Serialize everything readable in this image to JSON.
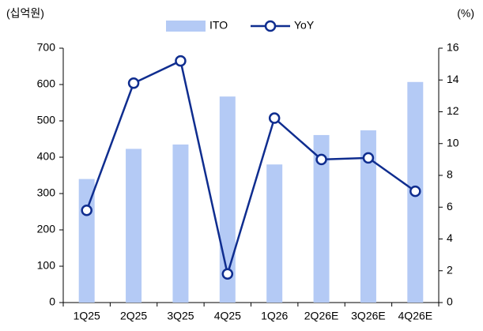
{
  "chart_data": {
    "type": "bar_line",
    "y_label": "(십억원)",
    "y2_label": "(%)",
    "categories": [
      "1Q25",
      "2Q25",
      "3Q25",
      "4Q25",
      "1Q26",
      "2Q26E",
      "3Q26E",
      "4Q26E"
    ],
    "series": [
      {
        "name": "ITO",
        "type": "bar",
        "color": "#b4caf5",
        "values": [
          340,
          423,
          435,
          567,
          380,
          461,
          474,
          607
        ]
      },
      {
        "name": "YoY",
        "type": "line",
        "axis": "y2",
        "color": "#0f2d8f",
        "values": [
          5.8,
          13.8,
          15.2,
          1.8,
          11.6,
          9.0,
          9.1,
          7.0
        ]
      }
    ],
    "ylim": [
      0,
      700
    ],
    "yticks": [
      0,
      100,
      200,
      300,
      400,
      500,
      600,
      700
    ],
    "y2lim": [
      0,
      16
    ],
    "y2ticks": [
      0,
      2,
      4,
      6,
      8,
      10,
      12,
      14,
      16
    ]
  }
}
